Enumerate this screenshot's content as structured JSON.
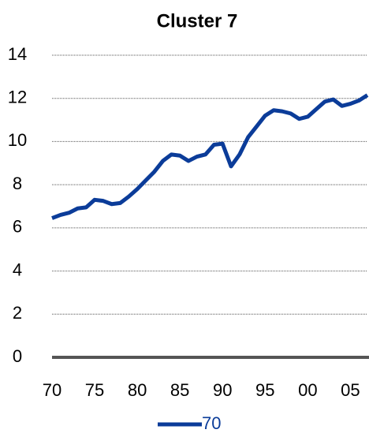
{
  "chart_data": {
    "type": "line",
    "title": "Cluster 7",
    "x": [
      1970,
      1971,
      1972,
      1973,
      1974,
      1975,
      1976,
      1977,
      1978,
      1979,
      1980,
      1981,
      1982,
      1983,
      1984,
      1985,
      1986,
      1987,
      1988,
      1989,
      1990,
      1991,
      1992,
      1993,
      1994,
      1995,
      1996,
      1997,
      1998,
      1999,
      2000,
      2001,
      2002,
      2003,
      2004,
      2005,
      2006,
      2007
    ],
    "series": [
      {
        "name": "70",
        "color": "#0b3c99",
        "values": [
          6.45,
          6.6,
          6.7,
          6.9,
          6.95,
          7.3,
          7.25,
          7.1,
          7.15,
          7.45,
          7.8,
          8.2,
          8.6,
          9.1,
          9.4,
          9.35,
          9.1,
          9.3,
          9.4,
          9.85,
          9.9,
          8.85,
          9.4,
          10.2,
          10.7,
          11.2,
          11.45,
          11.4,
          11.3,
          11.05,
          11.15,
          11.5,
          11.85,
          11.95,
          11.65,
          11.75,
          11.9,
          12.15
        ]
      }
    ],
    "xlim": [
      1970,
      2007
    ],
    "xticks": [
      {
        "value": 1970,
        "label": "70"
      },
      {
        "value": 1975,
        "label": "75"
      },
      {
        "value": 1980,
        "label": "80"
      },
      {
        "value": 1985,
        "label": "85"
      },
      {
        "value": 1990,
        "label": "90"
      },
      {
        "value": 1995,
        "label": "95"
      },
      {
        "value": 2000,
        "label": "00"
      },
      {
        "value": 2005,
        "label": "05"
      }
    ],
    "ylim": [
      0,
      14
    ],
    "yticks": [
      0,
      2,
      4,
      6,
      8,
      10,
      12,
      14
    ],
    "grid": true
  }
}
